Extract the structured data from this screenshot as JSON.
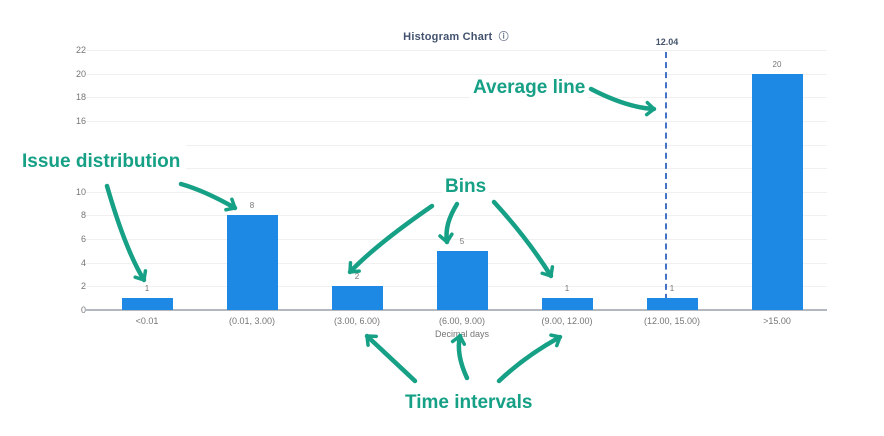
{
  "header": {
    "title": "Histogram Chart",
    "info_icon_glyph": "ⓘ"
  },
  "chart_data": {
    "type": "bar",
    "title": "Histogram Chart",
    "categories": [
      "<0.01",
      "(0.01, 3.00)",
      "(3.00, 6.00)",
      "(6.00, 9.00)",
      "(9.00, 12.00)",
      "(12.00, 15.00)",
      ">15.00"
    ],
    "values": [
      1,
      8,
      2,
      5,
      1,
      1,
      20
    ],
    "bar_value_labels": [
      "1",
      "8",
      "2",
      "5",
      "1",
      "1",
      "20"
    ],
    "xlabel": "Decimal days",
    "ylabel": "",
    "ylim": [
      0,
      22
    ],
    "ytick_step": 2,
    "grid": true,
    "legend": "none",
    "bar_color": "#1e88e5",
    "average_line": {
      "value": 12.04,
      "label": "12.04",
      "color": "#4472c4",
      "style": "dashed"
    }
  },
  "annotations": {
    "color": "#16a085",
    "issue_distribution_label": "Issue distribution",
    "bins_label": "Bins",
    "average_line_label": "Average line",
    "time_intervals_label": "Time intervals"
  }
}
